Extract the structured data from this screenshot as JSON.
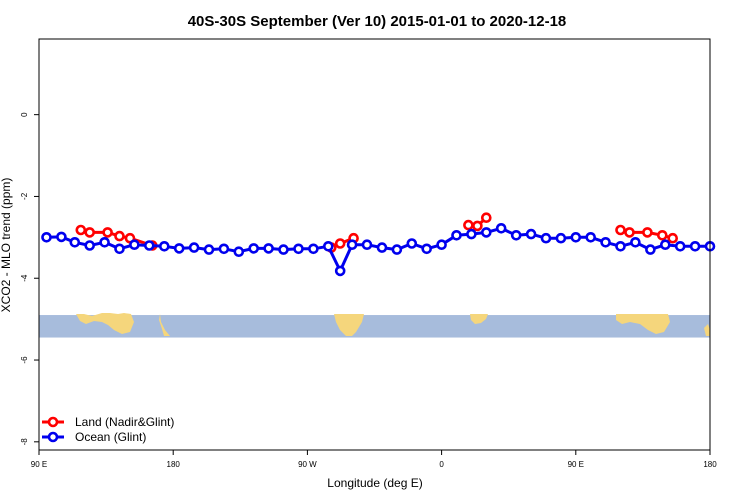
{
  "chart_data": {
    "type": "line",
    "title": "40S-30S September (Ver 10)   2015-01-01 to 2020-12-18",
    "xlabel": "Longitude (deg E)",
    "ylabel": "XCO2 - MLO trend (ppm)",
    "xlim": [
      90,
      540
    ],
    "ylim": [
      -8.2,
      1.85
    ],
    "x_ticks": [
      {
        "value": 90,
        "label": "90 E"
      },
      {
        "value": 180,
        "label": "180"
      },
      {
        "value": 270,
        "label": "90 W"
      },
      {
        "value": 360,
        "label": "0"
      },
      {
        "value": 450,
        "label": "90 E"
      },
      {
        "value": 540,
        "label": "180"
      }
    ],
    "y_ticks": [
      {
        "value": 0,
        "label": "0"
      },
      {
        "value": -2,
        "label": "-2"
      },
      {
        "value": -4,
        "label": "-4"
      },
      {
        "value": -6,
        "label": "-6"
      },
      {
        "value": -8,
        "label": "-8"
      }
    ],
    "map_strip": {
      "ymin": -5.45,
      "ymax": -4.9,
      "ocean_color": "#a7bcdc",
      "land_color": "#f5d67c"
    },
    "legend_position": "bottom-left",
    "series": [
      {
        "name": "Land (Nadir&Glint)",
        "color": "#ff0000",
        "segments": [
          [
            [
              118,
              -2.82
            ],
            [
              124,
              -2.88
            ],
            [
              136,
              -2.88
            ],
            [
              144,
              -2.97
            ],
            [
              151,
              -3.02
            ],
            [
              166,
              -3.2
            ]
          ],
          [
            [
              286,
              -3.25
            ],
            [
              292,
              -3.15
            ],
            [
              301,
              -3.02
            ]
          ],
          [
            [
              378,
              -2.7
            ],
            [
              384,
              -2.72
            ],
            [
              390,
              -2.52
            ]
          ],
          [
            [
              480,
              -2.82
            ],
            [
              486,
              -2.88
            ],
            [
              498,
              -2.88
            ],
            [
              508,
              -2.95
            ],
            [
              515,
              -3.02
            ]
          ]
        ]
      },
      {
        "name": "Ocean (Glint)",
        "color": "#0000ee",
        "segments": [
          [
            [
              95,
              -3.0
            ],
            [
              105,
              -2.99
            ],
            [
              114,
              -3.12
            ],
            [
              124,
              -3.2
            ],
            [
              134,
              -3.12
            ],
            [
              144,
              -3.28
            ],
            [
              154,
              -3.18
            ],
            [
              164,
              -3.2
            ],
            [
              174,
              -3.22
            ],
            [
              184,
              -3.27
            ],
            [
              194,
              -3.25
            ],
            [
              204,
              -3.3
            ],
            [
              214,
              -3.28
            ],
            [
              224,
              -3.35
            ],
            [
              234,
              -3.27
            ],
            [
              244,
              -3.27
            ],
            [
              254,
              -3.3
            ],
            [
              264,
              -3.28
            ],
            [
              274,
              -3.28
            ],
            [
              284,
              -3.22
            ],
            [
              292,
              -3.82
            ],
            [
              300,
              -3.18
            ],
            [
              310,
              -3.18
            ],
            [
              320,
              -3.25
            ],
            [
              330,
              -3.3
            ],
            [
              340,
              -3.15
            ],
            [
              350,
              -3.28
            ],
            [
              360,
              -3.18
            ],
            [
              370,
              -2.95
            ],
            [
              380,
              -2.92
            ],
            [
              390,
              -2.88
            ],
            [
              400,
              -2.78
            ],
            [
              410,
              -2.95
            ],
            [
              420,
              -2.92
            ],
            [
              430,
              -3.02
            ],
            [
              440,
              -3.02
            ],
            [
              450,
              -3.0
            ],
            [
              460,
              -3.0
            ],
            [
              470,
              -3.12
            ],
            [
              480,
              -3.22
            ],
            [
              490,
              -3.12
            ],
            [
              500,
              -3.3
            ],
            [
              510,
              -3.18
            ],
            [
              520,
              -3.22
            ],
            [
              530,
              -3.22
            ],
            [
              540,
              -3.22
            ]
          ]
        ]
      }
    ]
  }
}
